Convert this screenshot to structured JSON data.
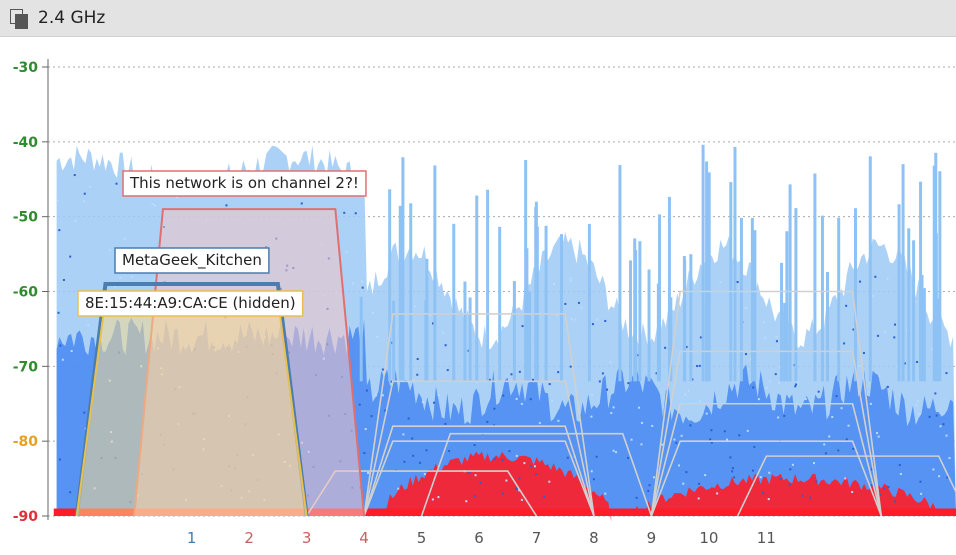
{
  "window": {
    "title": "2.4 GHz",
    "icon": "pages-icon"
  },
  "chart_data": {
    "type": "heatmap",
    "title": "2.4 GHz",
    "y_ticks": [
      -30,
      -40,
      -50,
      -60,
      -70,
      -80,
      -90
    ],
    "y_tick_colors": [
      "#2e8b2e",
      "#2e8b2e",
      "#2e8b2e",
      "#2e8b2e",
      "#2e8b2e",
      "#e8a020",
      "#e0303a"
    ],
    "ylim": [
      -90,
      -30
    ],
    "xlim": [
      -1.5,
      14.3
    ],
    "x_ticks": [
      {
        "label": "1",
        "value": 1,
        "color": "#3a7fb5"
      },
      {
        "label": "2",
        "value": 2,
        "color": "#c86060"
      },
      {
        "label": "3",
        "value": 3,
        "color": "#c86060"
      },
      {
        "label": "4",
        "value": 4,
        "color": "#c86060"
      },
      {
        "label": "5",
        "value": 5,
        "color": "#555555"
      },
      {
        "label": "6",
        "value": 6,
        "color": "#555555"
      },
      {
        "label": "7",
        "value": 7,
        "color": "#555555"
      },
      {
        "label": "8",
        "value": 8,
        "color": "#555555"
      },
      {
        "label": "9",
        "value": 9,
        "color": "#555555"
      },
      {
        "label": "10",
        "value": 10,
        "color": "#555555"
      },
      {
        "label": "11",
        "value": 11,
        "color": "#555555"
      }
    ],
    "networks": [
      {
        "label": "This network is on channel 2?!",
        "channel": 2,
        "signal": -49,
        "color": "#e07070",
        "fill": "#f4c4c4"
      },
      {
        "label": "MetaGeek_Kitchen",
        "channel": 1,
        "signal": -59,
        "color": "#4a7db0",
        "fill": "none"
      },
      {
        "label": "8E:15:44:A9:CA:CE (hidden)",
        "channel": 1,
        "signal": -61,
        "color": "#e8c050",
        "fill": "#f8d890"
      }
    ],
    "colors": {
      "grid": "#aaaaaa",
      "density_low": "#9ccaf5",
      "density_mid": "#3a7ef0",
      "density_high": "#ff1e28",
      "inactive_network": "#d0d0d0"
    }
  }
}
